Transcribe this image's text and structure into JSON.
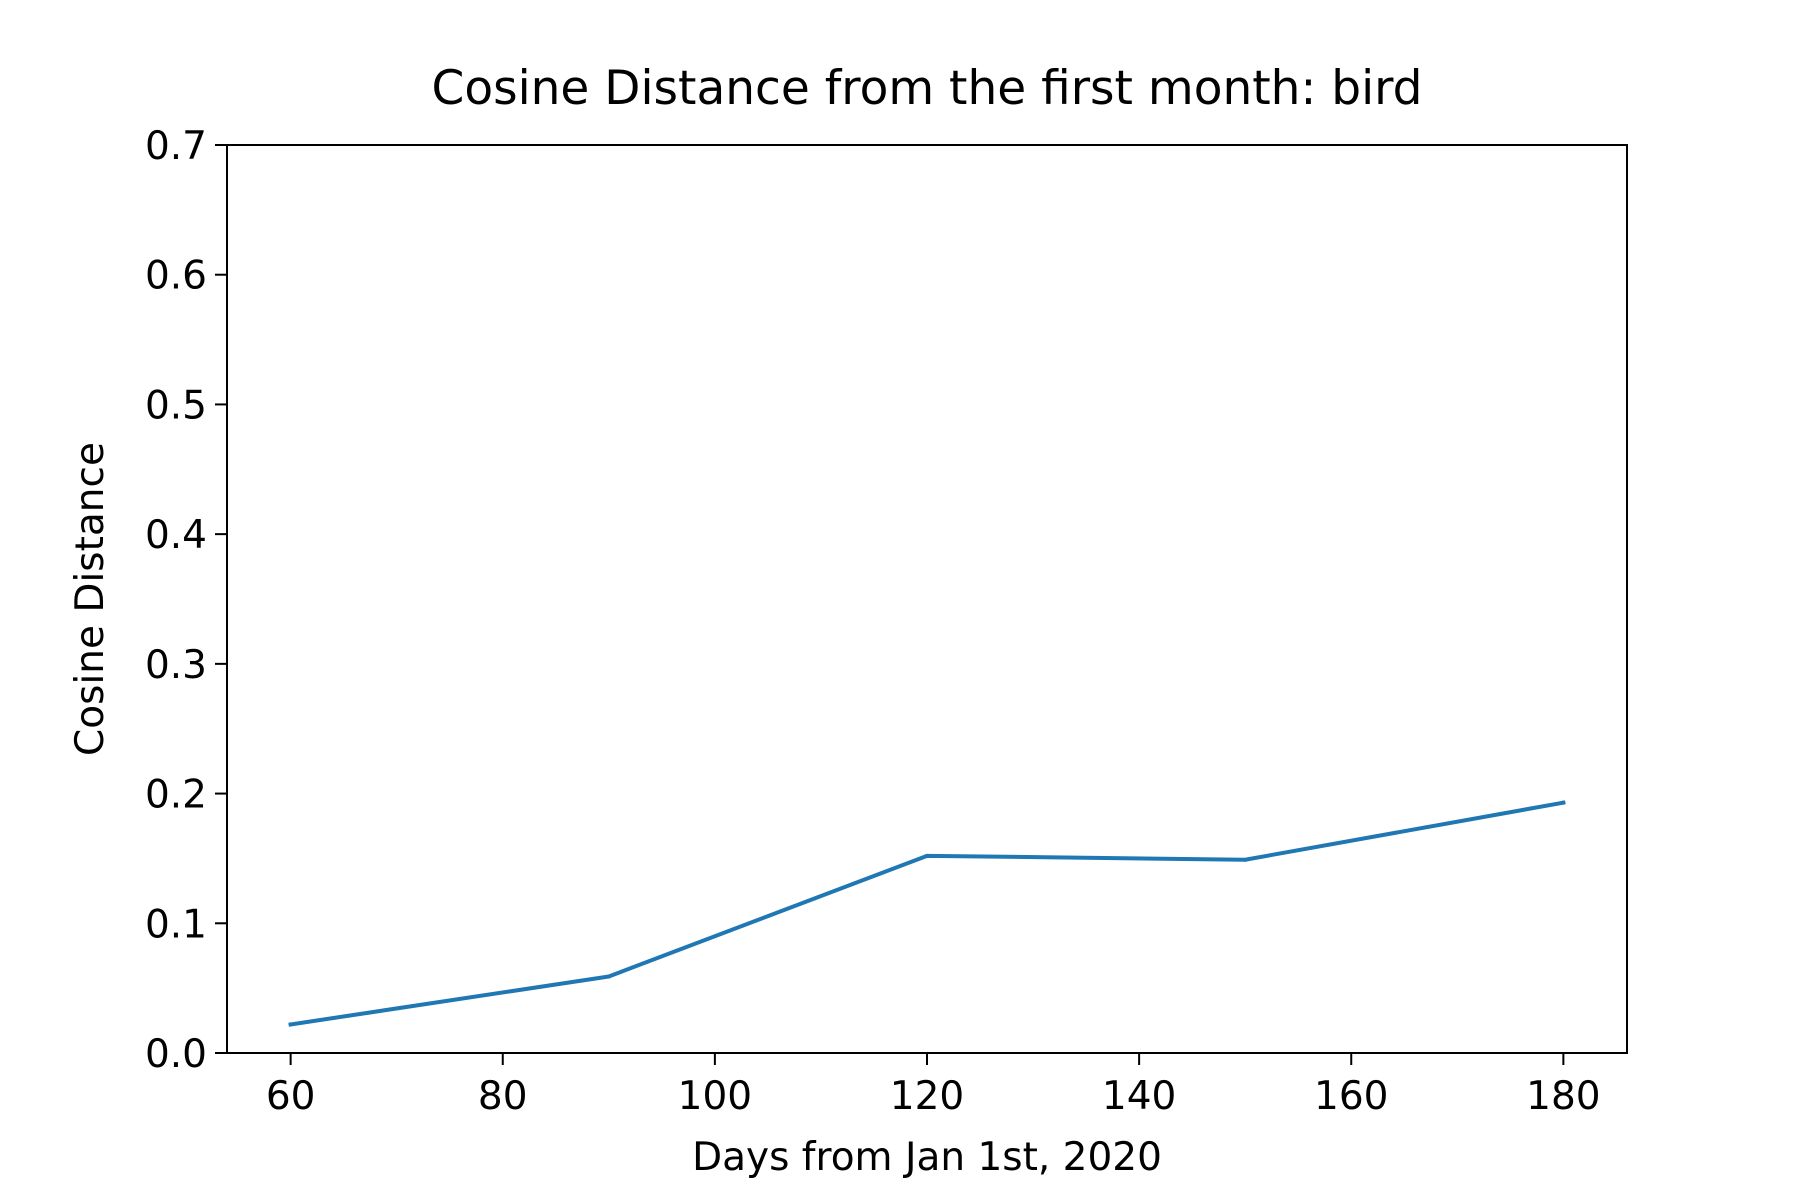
{
  "chart_data": {
    "type": "line",
    "title": "Cosine Distance from the first month: bird",
    "xlabel": "Days from Jan 1st, 2020",
    "ylabel": "Cosine Distance",
    "xlim": [
      54,
      186
    ],
    "ylim": [
      0,
      0.7
    ],
    "xticks": [
      60,
      80,
      100,
      120,
      140,
      160,
      180
    ],
    "yticks": [
      0.0,
      0.1,
      0.2,
      0.3,
      0.4,
      0.5,
      0.6,
      0.7
    ],
    "xtick_labels": [
      "60",
      "80",
      "100",
      "120",
      "140",
      "160",
      "180"
    ],
    "ytick_labels": [
      "0.0",
      "0.1",
      "0.2",
      "0.3",
      "0.4",
      "0.5",
      "0.6",
      "0.7"
    ],
    "grid": false,
    "legend": "none",
    "series": [
      {
        "color": "#1f77b4",
        "x": [
          60,
          90,
          120,
          150,
          180
        ],
        "y": [
          0.022,
          0.059,
          0.152,
          0.149,
          0.193
        ]
      }
    ]
  }
}
